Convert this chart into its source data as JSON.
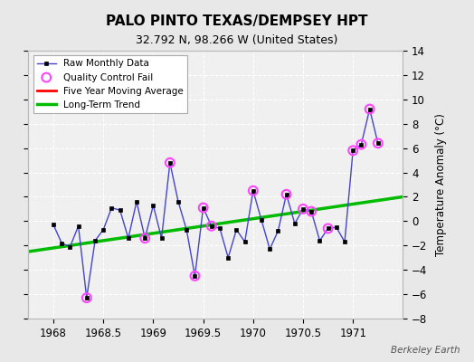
{
  "title": "PALO PINTO TEXAS/DEMPSEY HPT",
  "subtitle": "32.792 N, 98.266 W (United States)",
  "ylabel": "Temperature Anomaly (°C)",
  "watermark": "Berkeley Earth",
  "xlim": [
    1967.75,
    1971.5
  ],
  "ylim": [
    -8,
    14
  ],
  "yticks": [
    -8,
    -6,
    -4,
    -2,
    0,
    2,
    4,
    6,
    8,
    10,
    12,
    14
  ],
  "xticks": [
    1968,
    1968.5,
    1969,
    1969.5,
    1970,
    1970.5,
    1971
  ],
  "raw_x": [
    1968.0,
    1968.083,
    1968.167,
    1968.25,
    1968.333,
    1968.417,
    1968.5,
    1968.583,
    1968.667,
    1968.75,
    1968.833,
    1968.917,
    1969.0,
    1969.083,
    1969.167,
    1969.25,
    1969.333,
    1969.417,
    1969.5,
    1969.583,
    1969.667,
    1969.75,
    1969.833,
    1969.917,
    1970.0,
    1970.083,
    1970.167,
    1970.25,
    1970.333,
    1970.417,
    1970.5,
    1970.583,
    1970.667,
    1970.75,
    1970.833,
    1970.917,
    1971.0,
    1971.083,
    1971.167,
    1971.25
  ],
  "raw_y": [
    -0.3,
    -1.8,
    -2.1,
    -0.4,
    -6.3,
    -1.6,
    -0.7,
    1.1,
    0.9,
    -1.4,
    1.6,
    -1.4,
    1.3,
    -1.4,
    4.8,
    1.6,
    -0.7,
    -4.5,
    1.1,
    -0.4,
    -0.6,
    -3.0,
    -0.7,
    -1.7,
    2.5,
    0.1,
    -2.3,
    -0.8,
    2.2,
    -0.2,
    1.0,
    0.8,
    -1.6,
    -0.6,
    -0.5,
    -1.7,
    5.8,
    6.3,
    9.2,
    6.4
  ],
  "qc_fail_x": [
    1968.333,
    1968.917,
    1969.167,
    1969.417,
    1969.5,
    1969.583,
    1970.0,
    1970.333,
    1970.5,
    1970.583,
    1970.75,
    1971.0,
    1971.083,
    1971.167,
    1971.25
  ],
  "qc_fail_y": [
    -6.3,
    -1.4,
    4.8,
    -4.5,
    1.1,
    -0.4,
    2.5,
    2.2,
    1.0,
    0.8,
    -0.6,
    5.8,
    6.3,
    9.2,
    6.4
  ],
  "trend_x": [
    1967.75,
    1971.5
  ],
  "trend_y": [
    -2.5,
    2.0
  ],
  "bg_color": "#e8e8e8",
  "plot_bg_color": "#f0f0f0",
  "line_color": "#4444cc",
  "marker_color": "#000000",
  "qc_color": "#ff44ff",
  "trend_color": "#00bb00",
  "ma_color": "#ff0000",
  "legend_items": [
    "Raw Monthly Data",
    "Quality Control Fail",
    "Five Year Moving Average",
    "Long-Term Trend"
  ]
}
